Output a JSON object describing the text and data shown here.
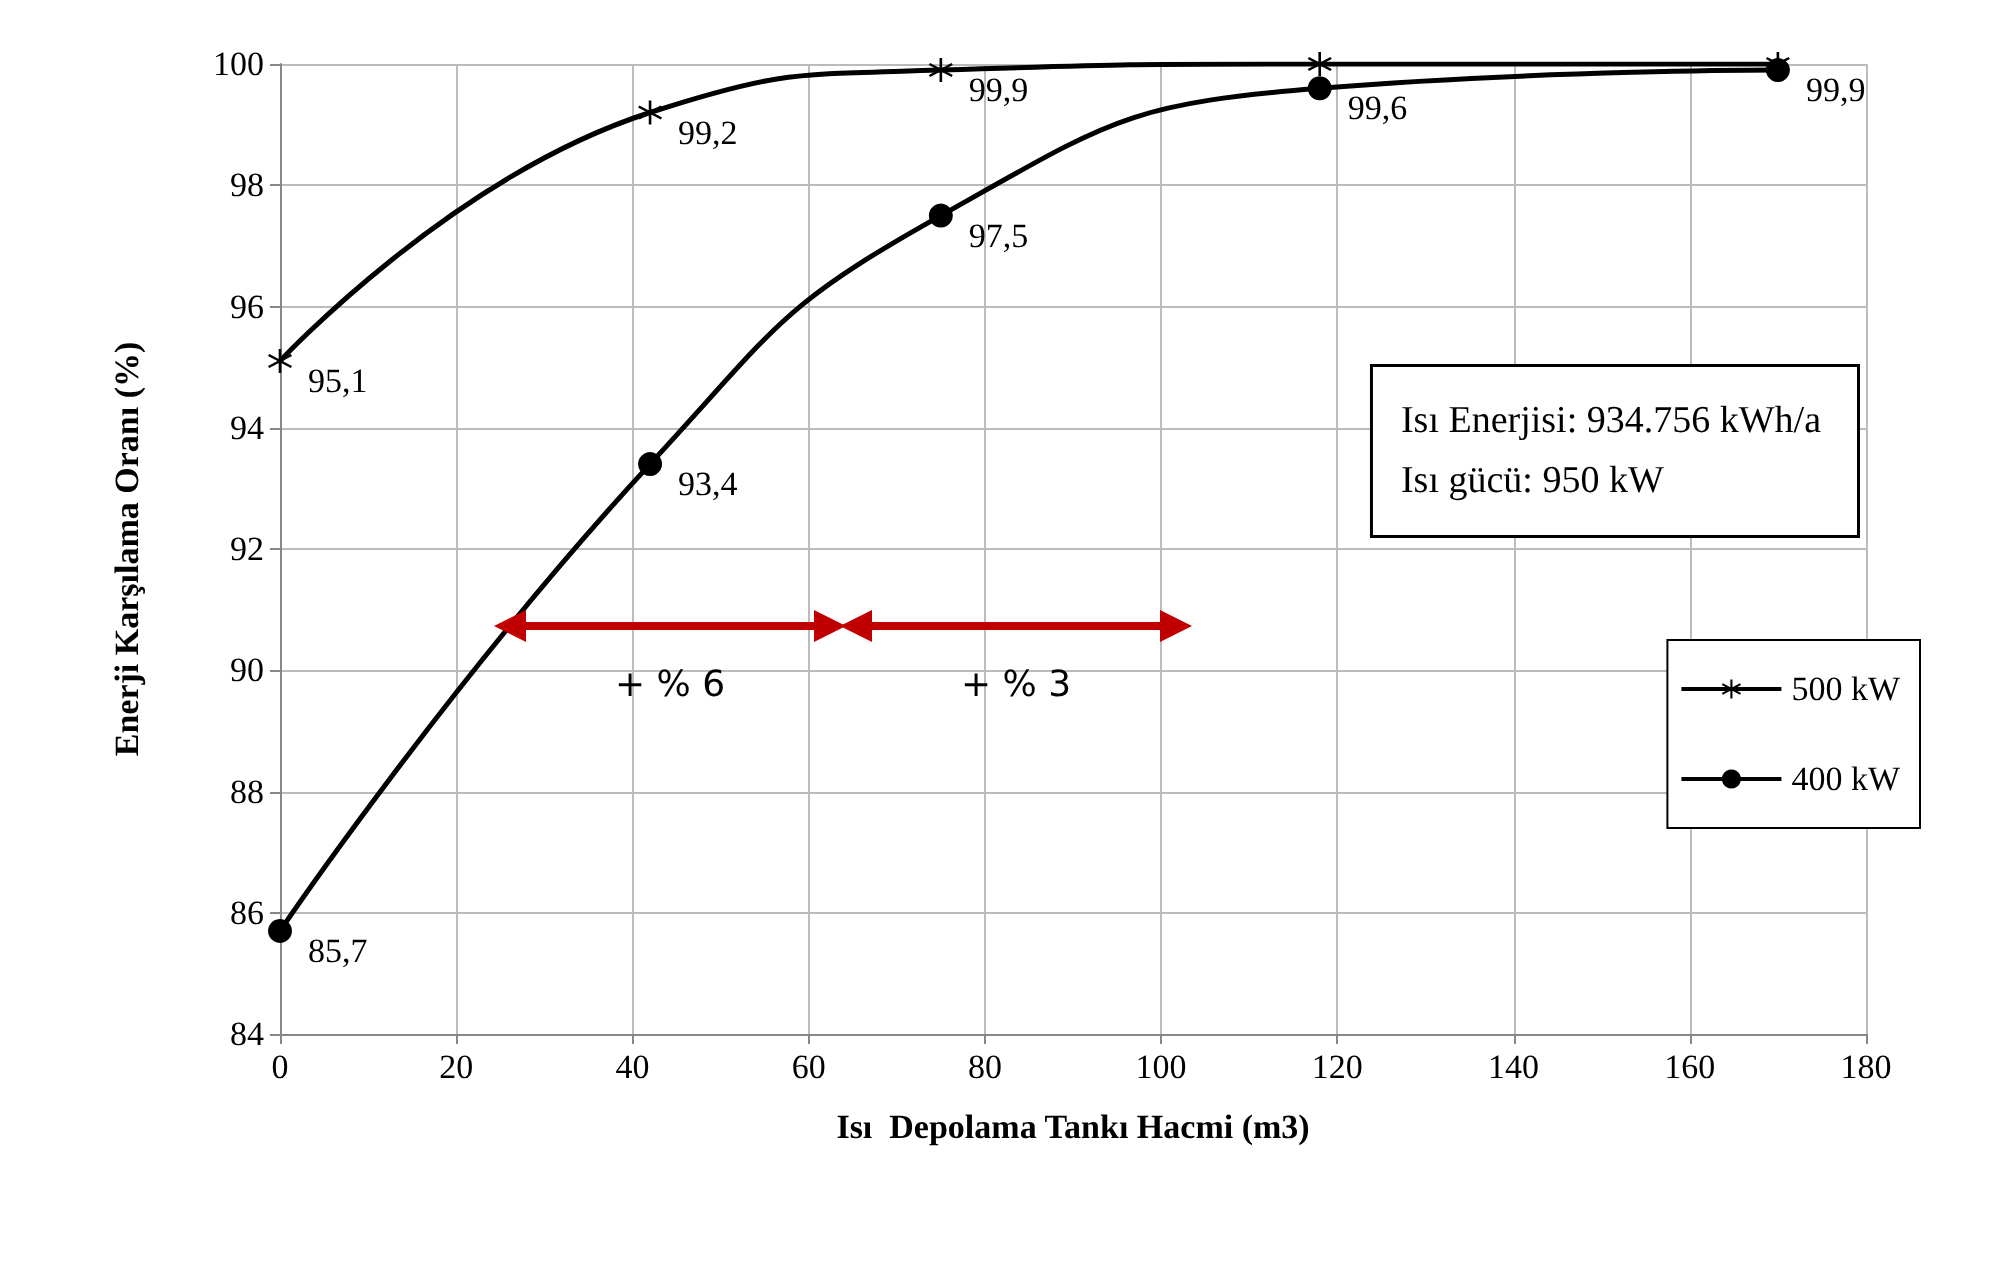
{
  "chart_data": {
    "type": "line",
    "xlabel": "Isı  Depolama Tankı Hacmi (m3)",
    "ylabel": "Enerji Karşılama Oranı (%)",
    "xlim": [
      0,
      180
    ],
    "xticks": [
      0,
      20,
      40,
      60,
      80,
      100,
      120,
      140,
      160,
      180
    ],
    "ylim": [
      84,
      100
    ],
    "yticks": [
      84,
      86,
      88,
      90,
      92,
      94,
      96,
      98,
      100
    ],
    "grid": true,
    "legend": "right",
    "line_style": "solid",
    "series": [
      {
        "name": "500 kW",
        "color": "#000000",
        "marker": "cross",
        "x": [
          0,
          42,
          75,
          118,
          170
        ],
        "values": [
          95.1,
          99.2,
          99.9,
          100,
          100
        ],
        "value_labels": [
          "95,1",
          "99,2",
          "99,9",
          null,
          null
        ]
      },
      {
        "name": "400 kW",
        "color": "#000000",
        "marker": "circle",
        "x": [
          0,
          42,
          75,
          118,
          170
        ],
        "values": [
          85.7,
          93.4,
          97.5,
          99.6,
          99.9
        ],
        "value_labels": [
          "85,7",
          "93,4",
          "97,5",
          "99,6",
          "99,9"
        ]
      }
    ],
    "annotations": [
      "Isı Enerjisi: 934.756 kWh/a\nIsı gücü: 950 kW",
      "+ % 6",
      "+ % 3"
    ]
  }
}
